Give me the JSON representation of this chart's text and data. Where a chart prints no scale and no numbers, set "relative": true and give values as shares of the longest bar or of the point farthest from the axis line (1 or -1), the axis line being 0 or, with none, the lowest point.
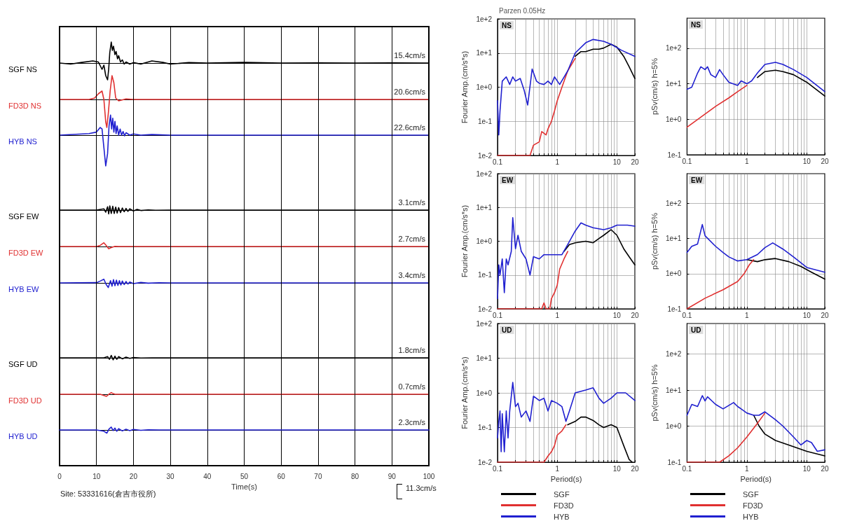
{
  "chart_data": [
    {
      "type": "line",
      "relative": true,
      "marker": "none",
      "grid": "x",
      "tick_labels": false,
      "xlim": [
        0,
        100
      ],
      "xticks": [
        0,
        10,
        20,
        30,
        40,
        50,
        60,
        70,
        80,
        90,
        100
      ],
      "annotations": [
        "15.4cm/s"
      ],
      "x": [
        0,
        3,
        6,
        9,
        10.5,
        11.5,
        12,
        12.5,
        13,
        13.3,
        13.6,
        14,
        14.3,
        14.6,
        15,
        15.3,
        15.7,
        16,
        16.5,
        17,
        17.5,
        18,
        19,
        20,
        22,
        25,
        28,
        30,
        35,
        40,
        50,
        60,
        70,
        80,
        90,
        100
      ],
      "series": [
        {
          "name": "SGF NS",
          "color": "#000000",
          "values": [
            0,
            -0.05,
            0.03,
            0.1,
            0.05,
            -0.3,
            -0.1,
            -0.6,
            -0.8,
            -0.3,
            0.5,
            1,
            0.6,
            0.8,
            0.4,
            0.55,
            0.2,
            0.35,
            0.05,
            0.15,
            -0.05,
            0.05,
            -0.05,
            0.02,
            -0.05,
            0.1,
            0.03,
            -0.05,
            0.02,
            0,
            0.03,
            0,
            0.01,
            0,
            0.01,
            0
          ]
        }
      ]
    },
    {
      "type": "line",
      "relative": true,
      "marker": "none",
      "grid": "x",
      "tick_labels": false,
      "xlim": [
        0,
        100
      ],
      "xticks": [
        0,
        10,
        20,
        30,
        40,
        50,
        60,
        70,
        80,
        90,
        100
      ],
      "annotations": [
        "20.6cm/s"
      ],
      "x": [
        0,
        8,
        9.5,
        10.5,
        11.5,
        12,
        12.5,
        12.8,
        13.2,
        13.7,
        14.2,
        14.7,
        15.2,
        16,
        18,
        20,
        30,
        100
      ],
      "series": [
        {
          "name": "FD3D NS",
          "color": "#e03030",
          "values": [
            0,
            0,
            0.05,
            0.2,
            0.3,
            0,
            -0.8,
            -1,
            -0.5,
            0.3,
            0.85,
            0.6,
            0.05,
            -0.05,
            0.02,
            0,
            0,
            0
          ]
        }
      ]
    },
    {
      "type": "line",
      "relative": true,
      "marker": "none",
      "grid": "x",
      "tick_labels": false,
      "xlim": [
        0,
        100
      ],
      "xticks": [
        0,
        10,
        20,
        30,
        40,
        50,
        60,
        70,
        80,
        90,
        100
      ],
      "annotations": [
        "22.6cm/s"
      ],
      "x": [
        0,
        8,
        10,
        11,
        11.5,
        12,
        12.5,
        13,
        13.4,
        13.8,
        14.1,
        14.4,
        14.7,
        15,
        15.3,
        15.6,
        16,
        16.4,
        16.8,
        17.2,
        17.6,
        18,
        19,
        20,
        22,
        25,
        30,
        100
      ],
      "series": [
        {
          "name": "HYB NS",
          "color": "#2020d0",
          "values": [
            0,
            0.05,
            0.1,
            0.25,
            0.2,
            -0.4,
            -1,
            -0.6,
            0.3,
            0.65,
            0.2,
            0.55,
            0.1,
            0.45,
            0.05,
            0.3,
            0,
            0.2,
            0,
            0.12,
            -0.02,
            0.08,
            0,
            0.04,
            0,
            0.02,
            0,
            0
          ]
        }
      ]
    },
    {
      "type": "line",
      "relative": true,
      "marker": "none",
      "grid": "x",
      "tick_labels": false,
      "xlim": [
        0,
        100
      ],
      "xticks": [
        0,
        10,
        20,
        30,
        40,
        50,
        60,
        70,
        80,
        90,
        100
      ],
      "annotations": [
        "3.1cm/s"
      ],
      "x": [
        0,
        10,
        12,
        12.5,
        13,
        13.3,
        13.6,
        14,
        14.4,
        14.8,
        15.2,
        15.6,
        16,
        16.5,
        17,
        17.5,
        18,
        18.5,
        19,
        20,
        21,
        22,
        24,
        26,
        30,
        100
      ],
      "series": [
        {
          "name": "SGF EW",
          "color": "#000000",
          "values": [
            0,
            0,
            0.3,
            -0.5,
            0.8,
            -0.9,
            1,
            -0.8,
            0.9,
            -0.8,
            0.7,
            -0.7,
            0.6,
            -0.6,
            0.5,
            -0.4,
            0.4,
            -0.3,
            0.3,
            -0.2,
            0.15,
            -0.1,
            0.05,
            -0.05,
            0,
            0
          ]
        }
      ]
    },
    {
      "type": "line",
      "relative": true,
      "marker": "none",
      "grid": "x",
      "tick_labels": false,
      "xlim": [
        0,
        100
      ],
      "xticks": [
        0,
        10,
        20,
        30,
        40,
        50,
        60,
        70,
        80,
        90,
        100
      ],
      "annotations": [
        "2.7cm/s"
      ],
      "x": [
        0,
        10,
        11,
        12,
        12.7,
        13.3,
        14,
        15,
        16,
        100
      ],
      "series": [
        {
          "name": "FD3D EW",
          "color": "#e03030",
          "values": [
            0,
            0,
            0.3,
            1,
            0.2,
            -0.6,
            -0.3,
            0.05,
            0,
            0
          ]
        }
      ]
    },
    {
      "type": "line",
      "relative": true,
      "marker": "none",
      "grid": "x",
      "tick_labels": false,
      "xlim": [
        0,
        100
      ],
      "xticks": [
        0,
        10,
        20,
        30,
        40,
        50,
        60,
        70,
        80,
        90,
        100
      ],
      "annotations": [
        "3.4cm/s"
      ],
      "x": [
        0,
        10,
        11,
        12,
        12.6,
        13.2,
        13.8,
        14.2,
        14.6,
        15,
        15.4,
        15.8,
        16.2,
        16.6,
        17,
        17.5,
        18,
        18.5,
        19,
        20,
        22,
        24,
        27,
        30,
        100
      ],
      "series": [
        {
          "name": "HYB EW",
          "color": "#2020d0",
          "values": [
            0,
            0.05,
            0.4,
            0.8,
            -0.3,
            -1,
            0.5,
            -0.7,
            0.7,
            -0.6,
            0.6,
            -0.55,
            0.5,
            -0.45,
            0.4,
            -0.35,
            0.3,
            -0.25,
            0.2,
            -0.15,
            0.1,
            -0.05,
            0.03,
            0,
            0
          ]
        }
      ]
    },
    {
      "type": "line",
      "relative": true,
      "marker": "none",
      "grid": "x",
      "tick_labels": false,
      "xlim": [
        0,
        100
      ],
      "xticks": [
        0,
        10,
        20,
        30,
        40,
        50,
        60,
        70,
        80,
        90,
        100
      ],
      "annotations": [
        "1.8cm/s"
      ],
      "x": [
        0,
        12,
        13,
        13.5,
        14,
        14.5,
        15,
        15.5,
        16,
        17,
        18,
        19,
        20,
        22,
        25,
        100
      ],
      "series": [
        {
          "name": "SGF UD",
          "color": "#000000",
          "values": [
            0,
            0,
            0.5,
            -0.6,
            1,
            -0.8,
            0.7,
            -0.6,
            0.5,
            -0.4,
            0.3,
            -0.2,
            0.1,
            -0.05,
            0,
            0
          ]
        }
      ]
    },
    {
      "type": "line",
      "relative": true,
      "marker": "none",
      "grid": "x",
      "tick_labels": false,
      "xlim": [
        0,
        100
      ],
      "xticks": [
        0,
        10,
        20,
        30,
        40,
        50,
        60,
        70,
        80,
        90,
        100
      ],
      "annotations": [
        "0.7cm/s"
      ],
      "x": [
        0,
        11,
        12,
        12.7,
        13.5,
        14,
        14.5,
        15,
        20,
        100
      ],
      "series": [
        {
          "name": "FD3D UD",
          "color": "#e03030",
          "values": [
            0,
            0,
            -0.6,
            -1,
            0.2,
            0.8,
            0.3,
            0,
            0,
            0
          ]
        }
      ]
    },
    {
      "type": "line",
      "relative": true,
      "marker": "none",
      "grid": "x",
      "tick_labels": "x",
      "xlabel": "Time(s)",
      "xlim": [
        0,
        100
      ],
      "xticks": [
        0,
        10,
        20,
        30,
        40,
        50,
        60,
        70,
        80,
        90,
        100
      ],
      "annotations": [
        "2.3cm/s",
        "Site: 53331616(倉吉市役所)",
        "11.3cm/s"
      ],
      "x": [
        0,
        10,
        12,
        12.8,
        13.4,
        14,
        14.5,
        15,
        15.5,
        16,
        17,
        18,
        19,
        20,
        22,
        24,
        27,
        100
      ],
      "series": [
        {
          "name": "HYB UD",
          "color": "#2020d0",
          "values": [
            0,
            0,
            -0.4,
            -1,
            0.3,
            0.9,
            -0.2,
            0.6,
            -0.4,
            0.4,
            -0.3,
            0.25,
            -0.2,
            0.15,
            -0.1,
            0.05,
            0,
            0
          ]
        }
      ]
    },
    {
      "type": "line",
      "title": "NS",
      "ylabel": "Fourier Amp.(cm/s*s)",
      "annotations": [
        "Parzen 0.05Hz"
      ],
      "log": "xy",
      "grid": true,
      "marker": "none",
      "xlim": [
        0.1,
        20
      ],
      "ylim": [
        0.01,
        100
      ],
      "xticks": [
        0.1,
        {
          "value": 0.2,
          "label": null
        },
        {
          "value": 0.3,
          "label": null
        },
        {
          "value": 0.4,
          "label": null
        },
        {
          "value": 0.5,
          "label": null
        },
        {
          "value": 0.6,
          "label": null
        },
        {
          "value": 0.7,
          "label": null
        },
        {
          "value": 0.8,
          "label": null
        },
        {
          "value": 0.9,
          "label": null
        },
        1,
        {
          "value": 2,
          "label": null
        },
        {
          "value": 3,
          "label": null
        },
        {
          "value": 4,
          "label": null
        },
        {
          "value": 5,
          "label": null
        },
        {
          "value": 6,
          "label": null
        },
        {
          "value": 7,
          "label": null
        },
        {
          "value": 8,
          "label": null
        },
        {
          "value": 9,
          "label": null
        },
        10,
        20
      ],
      "yticks": [
        {
          "value": 0.01,
          "label": "1e-2"
        },
        {
          "value": 0.1,
          "label": "1e-1"
        },
        {
          "value": 1,
          "label": "1e+0"
        },
        {
          "value": 10,
          "label": "1e+1"
        },
        {
          "value": 100,
          "label": "1e+2"
        }
      ],
      "series": [
        {
          "color": "#000000",
          "x": [
            2,
            2.5,
            3,
            4,
            5,
            6,
            8,
            10,
            13,
            16,
            20
          ],
          "values": [
            8,
            11,
            11,
            13,
            13,
            14,
            18,
            15,
            8,
            4,
            1.8
          ]
        },
        {
          "color": "#e03030",
          "x": [
            0.1,
            0.35,
            0.4,
            0.5,
            0.55,
            0.65,
            0.7,
            0.8,
            0.9,
            1,
            1.2,
            1.5,
            2
          ],
          "values": [
            0.01,
            0.01,
            0.02,
            0.025,
            0.05,
            0.04,
            0.06,
            0.1,
            0.2,
            0.4,
            1,
            3,
            7
          ]
        },
        {
          "color": "#2020d0",
          "x": [
            0.1,
            0.105,
            0.11,
            0.12,
            0.14,
            0.16,
            0.18,
            0.2,
            0.24,
            0.28,
            0.32,
            0.38,
            0.45,
            0.5,
            0.6,
            0.7,
            0.8,
            0.9,
            1.1,
            1.5,
            2,
            3,
            4,
            6,
            8,
            12,
            20
          ],
          "values": [
            0.4,
            0.04,
            0.2,
            1.5,
            2,
            1.2,
            2,
            1.5,
            1.8,
            0.8,
            0.3,
            3.4,
            1.5,
            1.3,
            1.2,
            1.5,
            1.2,
            2,
            1.2,
            3,
            10,
            20,
            25,
            22,
            18,
            12,
            8
          ]
        }
      ]
    },
    {
      "type": "line",
      "title": "NS",
      "ylabel": "pSv(cm/s) h=5%",
      "log": "xy",
      "grid": true,
      "marker": "none",
      "xlim": [
        0.1,
        20
      ],
      "ylim": [
        0.1,
        700
      ],
      "xticks": [
        0.1,
        {
          "value": 0.2,
          "label": null
        },
        {
          "value": 0.3,
          "label": null
        },
        {
          "value": 0.4,
          "label": null
        },
        {
          "value": 0.5,
          "label": null
        },
        {
          "value": 0.6,
          "label": null
        },
        {
          "value": 0.7,
          "label": null
        },
        {
          "value": 0.8,
          "label": null
        },
        {
          "value": 0.9,
          "label": null
        },
        1,
        {
          "value": 2,
          "label": null
        },
        {
          "value": 3,
          "label": null
        },
        {
          "value": 4,
          "label": null
        },
        {
          "value": 5,
          "label": null
        },
        {
          "value": 6,
          "label": null
        },
        {
          "value": 7,
          "label": null
        },
        {
          "value": 8,
          "label": null
        },
        {
          "value": 9,
          "label": null
        },
        10,
        20
      ],
      "yticks": [
        {
          "value": 0.1,
          "label": "1e-1"
        },
        {
          "value": 1,
          "label": "1e+0"
        },
        {
          "value": 10,
          "label": "1e+1"
        },
        {
          "value": 100,
          "label": "1e+2"
        }
      ],
      "series": [
        {
          "color": "#000000",
          "x": [
            1.5,
            2,
            3,
            4,
            6,
            10,
            20
          ],
          "values": [
            15,
            22,
            24,
            22,
            18,
            11,
            4.5
          ]
        },
        {
          "color": "#e03030",
          "x": [
            0.1,
            0.2,
            0.3,
            0.5,
            0.7,
            1
          ],
          "values": [
            0.6,
            1.4,
            2.3,
            4,
            6,
            9
          ]
        },
        {
          "color": "#2020d0",
          "x": [
            0.1,
            0.12,
            0.15,
            0.17,
            0.2,
            0.22,
            0.25,
            0.3,
            0.35,
            0.4,
            0.5,
            0.7,
            0.8,
            1,
            1.2,
            1.5,
            2,
            3,
            4,
            6,
            10,
            20
          ],
          "values": [
            7,
            8,
            20,
            30,
            25,
            30,
            18,
            15,
            25,
            18,
            11,
            9,
            12,
            10,
            12,
            20,
            35,
            40,
            35,
            25,
            15,
            6
          ]
        }
      ]
    },
    {
      "type": "line",
      "title": "EW",
      "ylabel": "Fourier Amp.(cm/s*s)",
      "log": "xy",
      "grid": true,
      "marker": "none",
      "xlim": [
        0.1,
        20
      ],
      "ylim": [
        0.01,
        100
      ],
      "xticks": [
        0.1,
        {
          "value": 0.2,
          "label": null
        },
        {
          "value": 0.3,
          "label": null
        },
        {
          "value": 0.4,
          "label": null
        },
        {
          "value": 0.5,
          "label": null
        },
        {
          "value": 0.6,
          "label": null
        },
        {
          "value": 0.7,
          "label": null
        },
        {
          "value": 0.8,
          "label": null
        },
        {
          "value": 0.9,
          "label": null
        },
        1,
        {
          "value": 2,
          "label": null
        },
        {
          "value": 3,
          "label": null
        },
        {
          "value": 4,
          "label": null
        },
        {
          "value": 5,
          "label": null
        },
        {
          "value": 6,
          "label": null
        },
        {
          "value": 7,
          "label": null
        },
        {
          "value": 8,
          "label": null
        },
        {
          "value": 9,
          "label": null
        },
        10,
        20
      ],
      "yticks": [
        {
          "value": 0.01,
          "label": "1e-2"
        },
        {
          "value": 0.1,
          "label": "1e-1"
        },
        {
          "value": 1,
          "label": "1e+0"
        },
        {
          "value": 10,
          "label": "1e+1"
        },
        {
          "value": 100,
          "label": "1e+2"
        }
      ],
      "series": [
        {
          "color": "#000000",
          "x": [
            1.3,
            1.6,
            2,
            3,
            4,
            5,
            6,
            8,
            10,
            13,
            16,
            20
          ],
          "values": [
            0.5,
            0.8,
            0.9,
            1,
            0.9,
            1.2,
            1.5,
            2.2,
            1.5,
            0.6,
            0.35,
            0.2
          ]
        },
        {
          "color": "#e03030",
          "x": [
            0.1,
            0.55,
            0.6,
            0.65,
            0.75,
            0.8,
            0.9,
            1,
            1.1,
            1.3,
            1.5
          ],
          "values": [
            0.01,
            0.01,
            0.015,
            0.01,
            0.01,
            0.02,
            0.03,
            0.05,
            0.15,
            0.3,
            0.5
          ]
        },
        {
          "color": "#2020d0",
          "x": [
            0.1,
            0.105,
            0.11,
            0.12,
            0.13,
            0.14,
            0.15,
            0.17,
            0.18,
            0.2,
            0.22,
            0.25,
            0.3,
            0.35,
            0.4,
            0.5,
            0.6,
            0.8,
            1,
            1.2,
            1.5,
            2,
            2.5,
            3,
            4,
            6,
            8,
            10,
            15,
            20
          ],
          "values": [
            0.02,
            0.2,
            0.1,
            0.3,
            0.03,
            0.3,
            0.2,
            0.5,
            5,
            0.6,
            1.5,
            0.5,
            0.3,
            0.1,
            0.35,
            0.3,
            0.4,
            0.4,
            0.4,
            0.4,
            0.8,
            2,
            3.5,
            3,
            2.5,
            2.2,
            2.5,
            3,
            3,
            2.8
          ]
        }
      ]
    },
    {
      "type": "line",
      "title": "EW",
      "ylabel": "pSv(cm/s) h=5%",
      "log": "xy",
      "grid": true,
      "marker": "none",
      "xlim": [
        0.1,
        20
      ],
      "ylim": [
        0.1,
        700
      ],
      "xticks": [
        0.1,
        {
          "value": 0.2,
          "label": null
        },
        {
          "value": 0.3,
          "label": null
        },
        {
          "value": 0.4,
          "label": null
        },
        {
          "value": 0.5,
          "label": null
        },
        {
          "value": 0.6,
          "label": null
        },
        {
          "value": 0.7,
          "label": null
        },
        {
          "value": 0.8,
          "label": null
        },
        {
          "value": 0.9,
          "label": null
        },
        1,
        {
          "value": 2,
          "label": null
        },
        {
          "value": 3,
          "label": null
        },
        {
          "value": 4,
          "label": null
        },
        {
          "value": 5,
          "label": null
        },
        {
          "value": 6,
          "label": null
        },
        {
          "value": 7,
          "label": null
        },
        {
          "value": 8,
          "label": null
        },
        {
          "value": 9,
          "label": null
        },
        10,
        20
      ],
      "yticks": [
        {
          "value": 0.1,
          "label": "1e-1"
        },
        {
          "value": 1,
          "label": "1e+0"
        },
        {
          "value": 10,
          "label": "1e+1"
        },
        {
          "value": 100,
          "label": "1e+2"
        }
      ],
      "series": [
        {
          "color": "#000000",
          "x": [
            1,
            1.5,
            2,
            3,
            5,
            8,
            12,
            20
          ],
          "values": [
            2.5,
            2.2,
            2.5,
            2.7,
            2.2,
            1.6,
            1.1,
            0.7
          ]
        },
        {
          "color": "#e03030",
          "x": [
            0.1,
            0.2,
            0.4,
            0.7,
            0.9,
            1.1,
            1.3
          ],
          "values": [
            0.1,
            0.2,
            0.35,
            0.6,
            1,
            1.8,
            2.5
          ]
        },
        {
          "color": "#2020d0",
          "x": [
            0.1,
            0.12,
            0.15,
            0.18,
            0.2,
            0.3,
            0.4,
            0.5,
            0.7,
            1,
            1.5,
            2,
            2.7,
            4,
            6,
            10,
            20
          ],
          "values": [
            4,
            6,
            7,
            25,
            12,
            6,
            4,
            3,
            2.3,
            2.5,
            3.5,
            5.5,
            7.5,
            5,
            3,
            1.5,
            1.1
          ]
        }
      ]
    },
    {
      "type": "line",
      "title": "UD",
      "ylabel": "Fourier Amp.(cm/s*s)",
      "xlabel": "Period(s)",
      "legend": "bottom",
      "log": "xy",
      "grid": true,
      "marker": "none",
      "xlim": [
        0.1,
        20
      ],
      "ylim": [
        0.01,
        100
      ],
      "xticks": [
        0.1,
        {
          "value": 0.2,
          "label": null
        },
        {
          "value": 0.3,
          "label": null
        },
        {
          "value": 0.4,
          "label": null
        },
        {
          "value": 0.5,
          "label": null
        },
        {
          "value": 0.6,
          "label": null
        },
        {
          "value": 0.7,
          "label": null
        },
        {
          "value": 0.8,
          "label": null
        },
        {
          "value": 0.9,
          "label": null
        },
        1,
        {
          "value": 2,
          "label": null
        },
        {
          "value": 3,
          "label": null
        },
        {
          "value": 4,
          "label": null
        },
        {
          "value": 5,
          "label": null
        },
        {
          "value": 6,
          "label": null
        },
        {
          "value": 7,
          "label": null
        },
        {
          "value": 8,
          "label": null
        },
        {
          "value": 9,
          "label": null
        },
        10,
        20
      ],
      "yticks": [
        {
          "value": 0.01,
          "label": "1e-2"
        },
        {
          "value": 0.1,
          "label": "1e-1"
        },
        {
          "value": 1,
          "label": "1e+0"
        },
        {
          "value": 10,
          "label": "1e+1"
        },
        {
          "value": 100,
          "label": "1e+2"
        }
      ],
      "series": [
        {
          "name": "SGF",
          "color": "#000000",
          "x": [
            1.5,
            2,
            2.5,
            3,
            4,
            5,
            6,
            8,
            10,
            13,
            16,
            18
          ],
          "values": [
            0.12,
            0.15,
            0.2,
            0.2,
            0.16,
            0.12,
            0.1,
            0.12,
            0.1,
            0.03,
            0.012,
            0.01
          ]
        },
        {
          "name": "FD3D",
          "color": "#e03030",
          "x": [
            0.1,
            0.6,
            0.7,
            0.8,
            0.9,
            1,
            1.2,
            1.4
          ],
          "values": [
            0.01,
            0.01,
            0.015,
            0.02,
            0.03,
            0.06,
            0.08,
            0.12
          ]
        },
        {
          "name": "HYB",
          "color": "#2020d0",
          "x": [
            0.1,
            0.105,
            0.11,
            0.115,
            0.12,
            0.13,
            0.14,
            0.15,
            0.16,
            0.18,
            0.2,
            0.22,
            0.25,
            0.3,
            0.35,
            0.4,
            0.5,
            0.6,
            0.7,
            0.8,
            1,
            1.2,
            1.4,
            1.6,
            2,
            3,
            4,
            5,
            6,
            8,
            10,
            14,
            20
          ],
          "values": [
            0.05,
            0.15,
            0.3,
            0.02,
            0.25,
            0.02,
            0.3,
            0.05,
            0.3,
            2,
            0.4,
            0.5,
            0.2,
            0.3,
            0.15,
            0.8,
            0.6,
            0.7,
            0.3,
            0.6,
            0.5,
            0.4,
            0.15,
            0.3,
            1,
            1.2,
            1.4,
            0.7,
            0.5,
            0.7,
            1,
            1,
            0.6
          ]
        }
      ]
    },
    {
      "type": "line",
      "title": "UD",
      "ylabel": "pSv(cm/s) h=5%",
      "xlabel": "Period(s)",
      "legend": "bottom",
      "log": "xy",
      "grid": true,
      "marker": "none",
      "xlim": [
        0.1,
        20
      ],
      "ylim": [
        0.1,
        700
      ],
      "xticks": [
        0.1,
        {
          "value": 0.2,
          "label": null
        },
        {
          "value": 0.3,
          "label": null
        },
        {
          "value": 0.4,
          "label": null
        },
        {
          "value": 0.5,
          "label": null
        },
        {
          "value": 0.6,
          "label": null
        },
        {
          "value": 0.7,
          "label": null
        },
        {
          "value": 0.8,
          "label": null
        },
        {
          "value": 0.9,
          "label": null
        },
        1,
        {
          "value": 2,
          "label": null
        },
        {
          "value": 3,
          "label": null
        },
        {
          "value": 4,
          "label": null
        },
        {
          "value": 5,
          "label": null
        },
        {
          "value": 6,
          "label": null
        },
        {
          "value": 7,
          "label": null
        },
        {
          "value": 8,
          "label": null
        },
        {
          "value": 9,
          "label": null
        },
        10,
        20
      ],
      "yticks": [
        {
          "value": 0.1,
          "label": "1e-1"
        },
        {
          "value": 1,
          "label": "1e+0"
        },
        {
          "value": 10,
          "label": "1e+1"
        },
        {
          "value": 100,
          "label": "1e+2"
        }
      ],
      "series": [
        {
          "name": "SGF",
          "color": "#000000",
          "x": [
            1.3,
            1.6,
            2,
            3,
            5,
            10,
            20
          ],
          "values": [
            2,
            1,
            0.6,
            0.4,
            0.3,
            0.2,
            0.15
          ]
        },
        {
          "name": "FD3D",
          "color": "#e03030",
          "x": [
            0.1,
            0.35,
            0.5,
            0.7,
            1,
            1.5,
            2
          ],
          "values": [
            0.1,
            0.1,
            0.15,
            0.25,
            0.5,
            1.2,
            2.3
          ]
        },
        {
          "name": "HYB",
          "color": "#2020d0",
          "x": [
            0.1,
            0.12,
            0.15,
            0.18,
            0.2,
            0.22,
            0.3,
            0.4,
            0.6,
            0.7,
            0.8,
            1,
            1.3,
            1.6,
            2,
            3,
            4,
            6,
            8,
            10,
            12,
            15,
            20
          ],
          "values": [
            2,
            4,
            3.5,
            7,
            5,
            6.5,
            4,
            3,
            4.5,
            3.5,
            3,
            2.3,
            2,
            2,
            2.5,
            1.5,
            1,
            0.5,
            0.3,
            0.4,
            0.35,
            0.2,
            0.22
          ]
        }
      ]
    }
  ]
}
